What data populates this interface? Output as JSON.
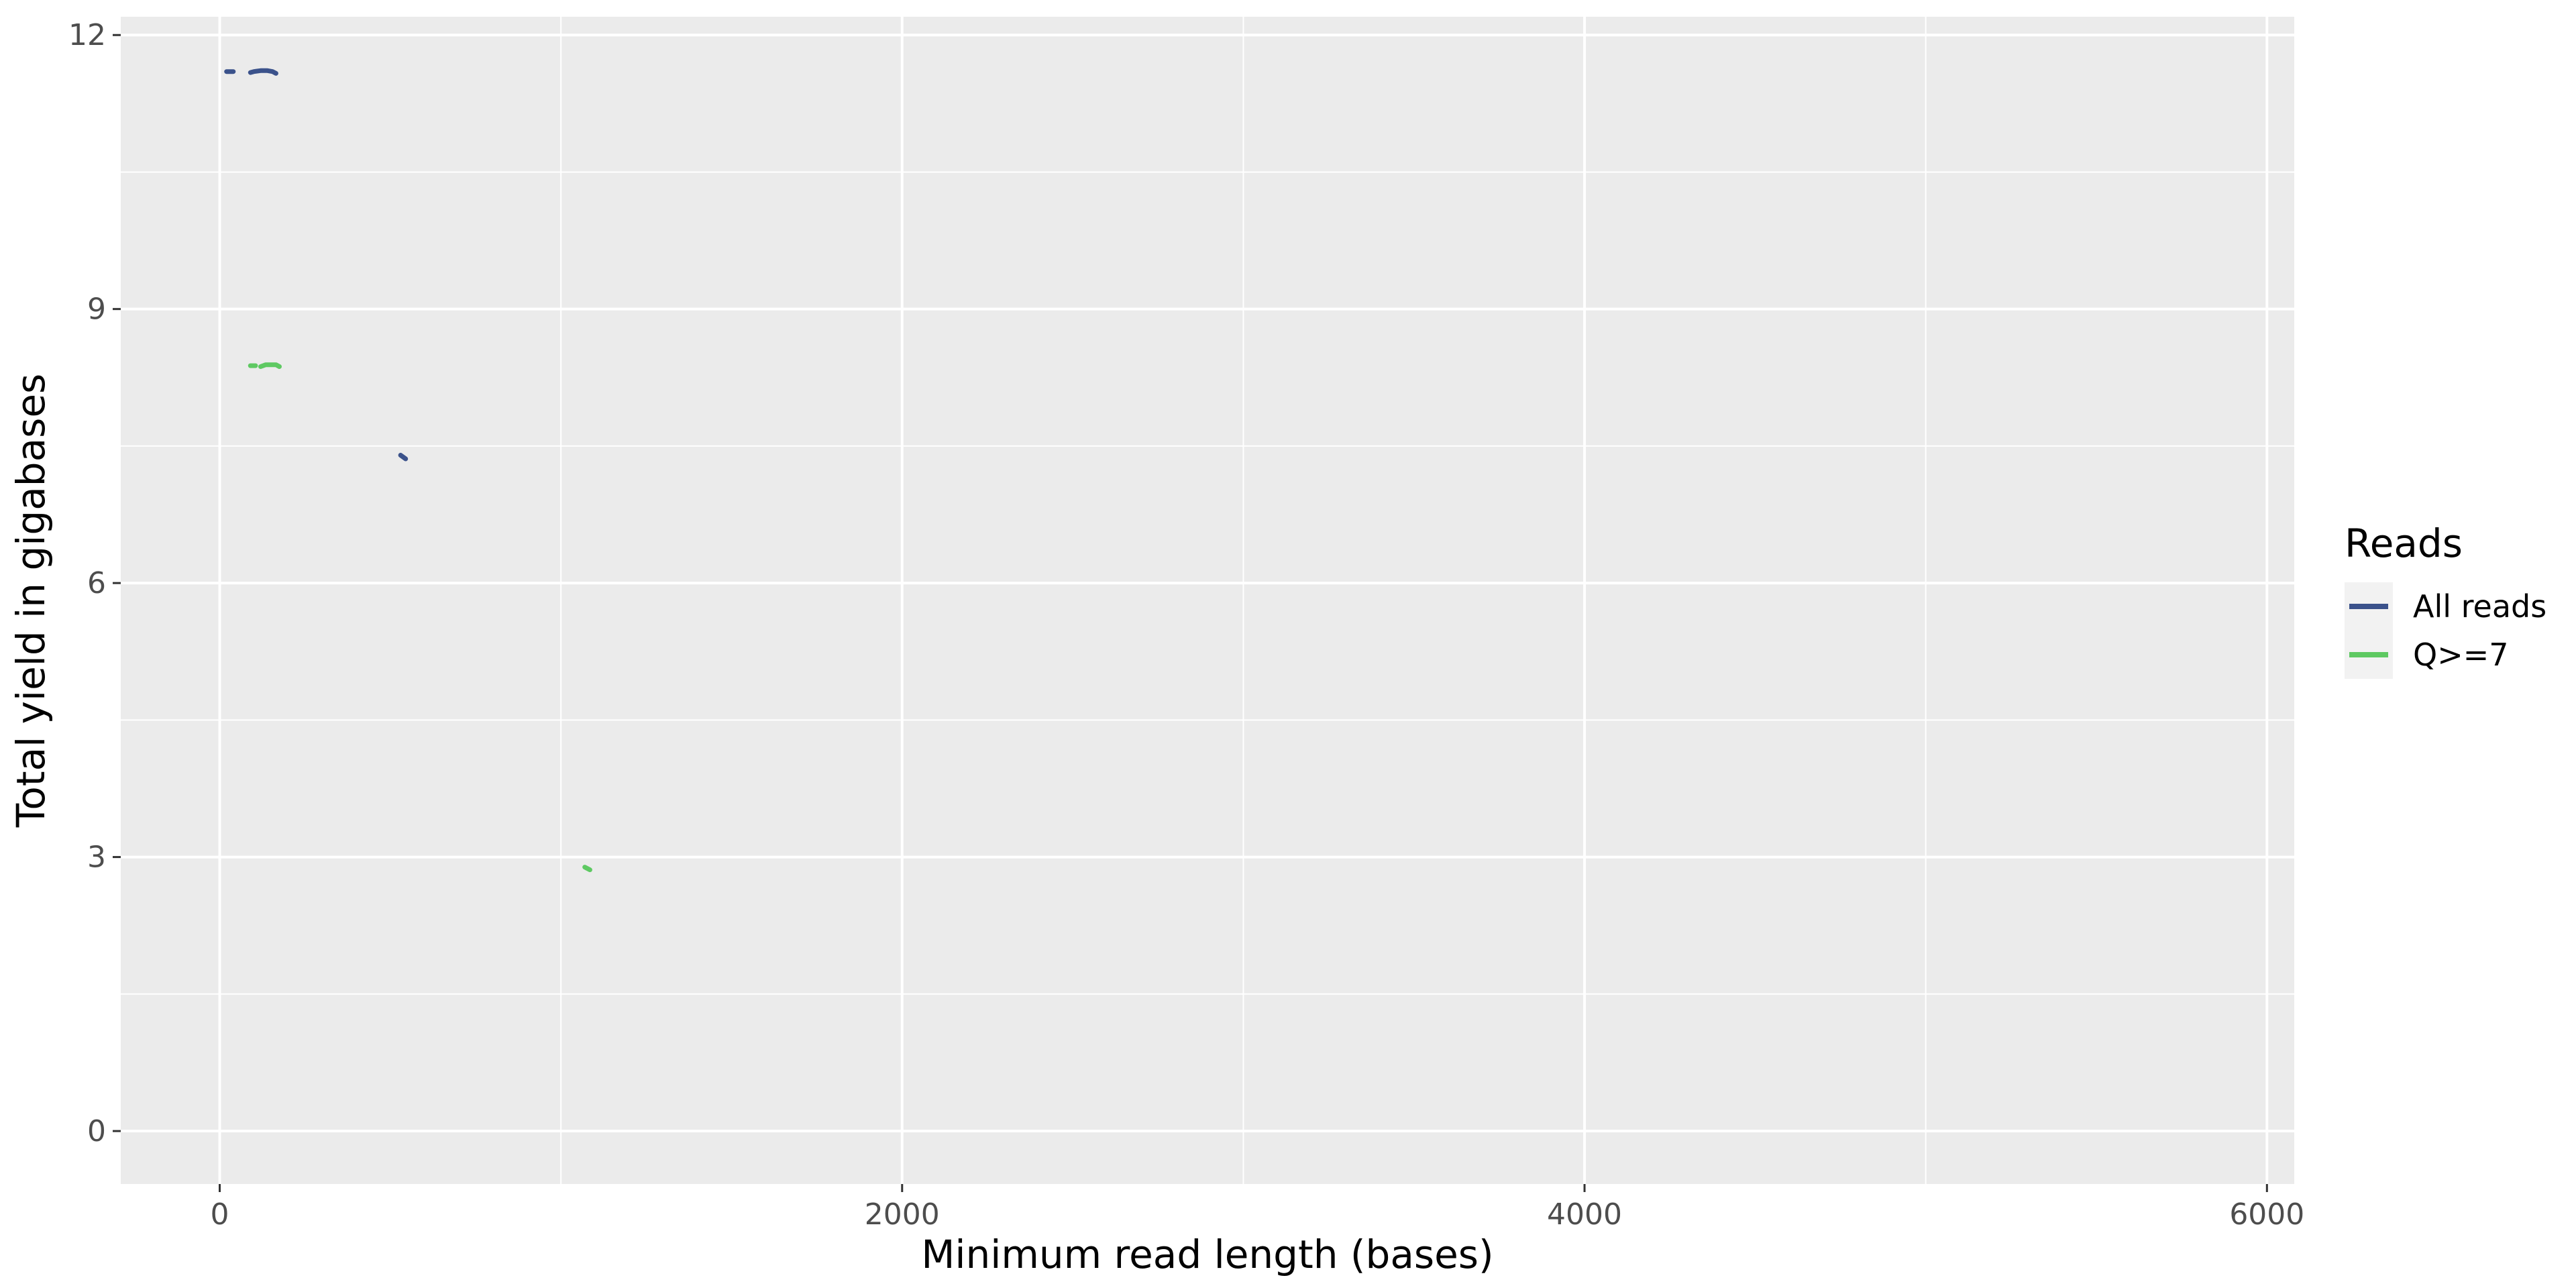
{
  "chart_data": {
    "type": "line",
    "xlabel": "Minimum read length (bases)",
    "ylabel": "Total yield in gigabases",
    "xlim": [
      -290,
      6080
    ],
    "ylim": [
      -0.58,
      12.2
    ],
    "x_ticks": [
      0,
      2000,
      4000,
      6000
    ],
    "x_tick_labels": [
      "0",
      "2000",
      "4000",
      "6000"
    ],
    "y_ticks": [
      0,
      3,
      6,
      9,
      12
    ],
    "y_tick_labels": [
      "0",
      "3",
      "6",
      "9",
      "12"
    ],
    "grid": true,
    "legend": {
      "title": "Reads",
      "placement": "right",
      "entries": [
        {
          "label": "All reads",
          "color": "#3B528B"
        },
        {
          "label": "Q>=7",
          "color": "#5EC962"
        }
      ]
    },
    "series": [
      {
        "name": "All reads",
        "color": "#3B528B",
        "segments": [
          [
            [
              20,
              11.6
            ],
            [
              40,
              11.6
            ]
          ],
          [
            [
              90,
              11.59
            ],
            [
              100,
              11.6
            ],
            [
              120,
              11.61
            ],
            [
              140,
              11.61
            ],
            [
              155,
              11.6
            ],
            [
              165,
              11.58
            ]
          ],
          [
            [
              530,
              7.4
            ],
            [
              545,
              7.36
            ]
          ]
        ]
      },
      {
        "name": "Q>=7",
        "color": "#5EC962",
        "segments": [
          [
            [
              90,
              8.38
            ],
            [
              105,
              8.38
            ]
          ],
          [
            [
              120,
              8.37
            ],
            [
              135,
              8.39
            ],
            [
              150,
              8.39
            ],
            [
              165,
              8.39
            ],
            [
              175,
              8.37
            ]
          ],
          [
            [
              1070,
              2.89
            ],
            [
              1085,
              2.86
            ]
          ]
        ]
      }
    ]
  }
}
